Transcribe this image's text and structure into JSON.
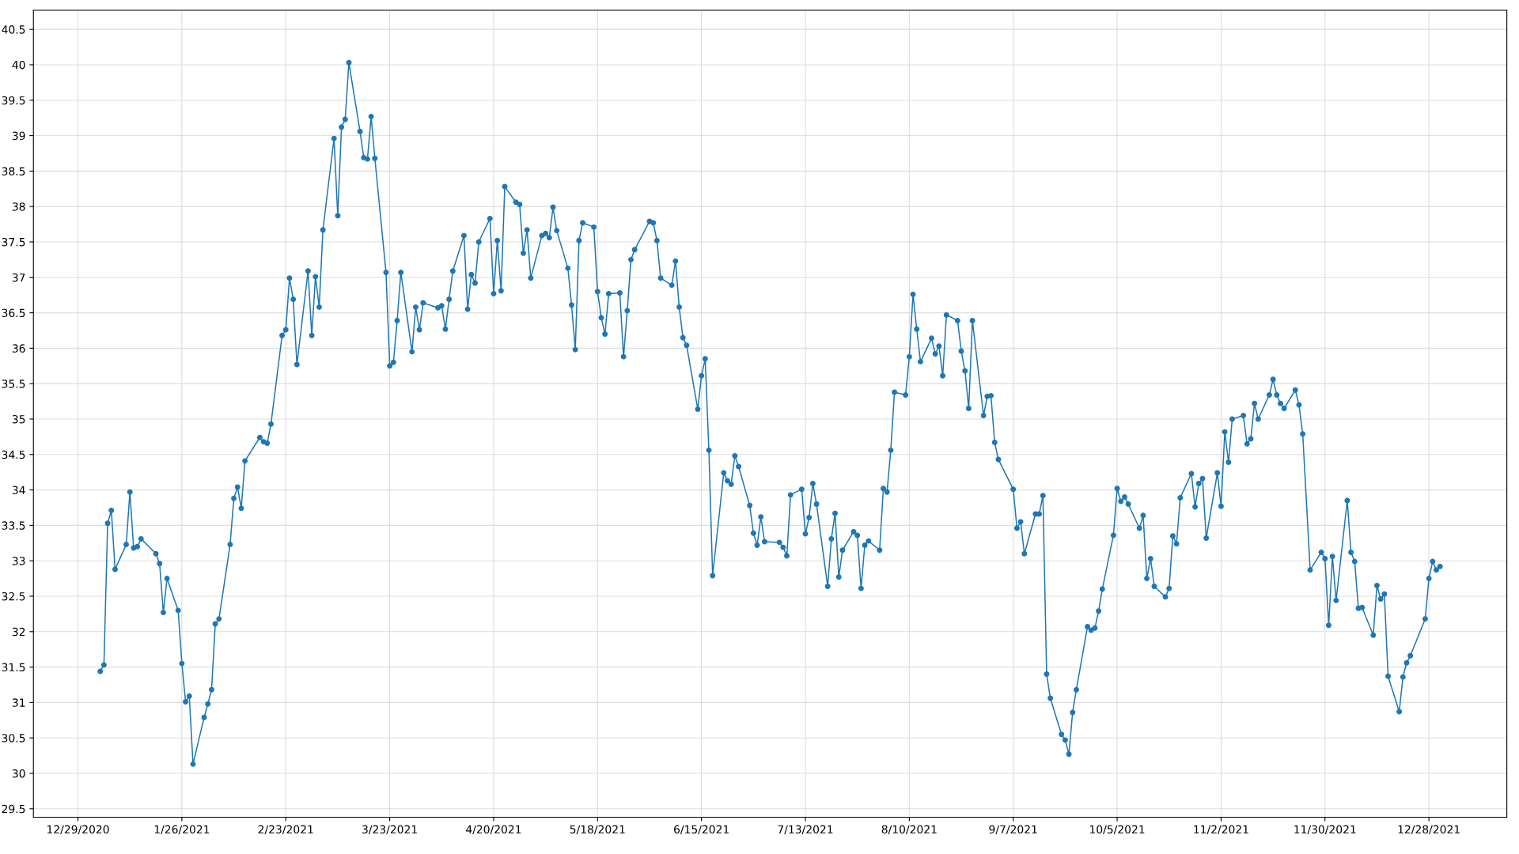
{
  "chart_data": {
    "type": "line",
    "x": [
      "2021-01-04",
      "2021-01-05",
      "2021-01-06",
      "2021-01-07",
      "2021-01-08",
      "2021-01-11",
      "2021-01-12",
      "2021-01-13",
      "2021-01-14",
      "2021-01-15",
      "2021-01-19",
      "2021-01-20",
      "2021-01-21",
      "2021-01-22",
      "2021-01-25",
      "2021-01-26",
      "2021-01-27",
      "2021-01-28",
      "2021-01-29",
      "2021-02-01",
      "2021-02-02",
      "2021-02-03",
      "2021-02-04",
      "2021-02-05",
      "2021-02-08",
      "2021-02-09",
      "2021-02-10",
      "2021-02-11",
      "2021-02-12",
      "2021-02-16",
      "2021-02-17",
      "2021-02-18",
      "2021-02-19",
      "2021-02-22",
      "2021-02-23",
      "2021-02-24",
      "2021-02-25",
      "2021-02-26",
      "2021-03-01",
      "2021-03-02",
      "2021-03-03",
      "2021-03-04",
      "2021-03-05",
      "2021-03-08",
      "2021-03-09",
      "2021-03-10",
      "2021-03-11",
      "2021-03-12",
      "2021-03-15",
      "2021-03-16",
      "2021-03-17",
      "2021-03-18",
      "2021-03-19",
      "2021-03-22",
      "2021-03-23",
      "2021-03-24",
      "2021-03-25",
      "2021-03-26",
      "2021-03-29",
      "2021-03-30",
      "2021-03-31",
      "2021-04-01",
      "2021-04-05",
      "2021-04-06",
      "2021-04-07",
      "2021-04-08",
      "2021-04-09",
      "2021-04-12",
      "2021-04-13",
      "2021-04-14",
      "2021-04-15",
      "2021-04-16",
      "2021-04-19",
      "2021-04-20",
      "2021-04-21",
      "2021-04-22",
      "2021-04-23",
      "2021-04-26",
      "2021-04-27",
      "2021-04-28",
      "2021-04-29",
      "2021-04-30",
      "2021-05-03",
      "2021-05-04",
      "2021-05-05",
      "2021-05-06",
      "2021-05-07",
      "2021-05-10",
      "2021-05-11",
      "2021-05-12",
      "2021-05-13",
      "2021-05-14",
      "2021-05-17",
      "2021-05-18",
      "2021-05-19",
      "2021-05-20",
      "2021-05-21",
      "2021-05-24",
      "2021-05-25",
      "2021-05-26",
      "2021-05-27",
      "2021-05-28",
      "2021-06-01",
      "2021-06-02",
      "2021-06-03",
      "2021-06-04",
      "2021-06-07",
      "2021-06-08",
      "2021-06-09",
      "2021-06-10",
      "2021-06-11",
      "2021-06-14",
      "2021-06-15",
      "2021-06-16",
      "2021-06-17",
      "2021-06-18",
      "2021-06-21",
      "2021-06-22",
      "2021-06-23",
      "2021-06-24",
      "2021-06-25",
      "2021-06-28",
      "2021-06-29",
      "2021-06-30",
      "2021-07-01",
      "2021-07-02",
      "2021-07-06",
      "2021-07-07",
      "2021-07-08",
      "2021-07-09",
      "2021-07-12",
      "2021-07-13",
      "2021-07-14",
      "2021-07-15",
      "2021-07-16",
      "2021-07-19",
      "2021-07-20",
      "2021-07-21",
      "2021-07-22",
      "2021-07-23",
      "2021-07-26",
      "2021-07-27",
      "2021-07-28",
      "2021-07-29",
      "2021-07-30",
      "2021-08-02",
      "2021-08-03",
      "2021-08-04",
      "2021-08-05",
      "2021-08-06",
      "2021-08-09",
      "2021-08-10",
      "2021-08-11",
      "2021-08-12",
      "2021-08-13",
      "2021-08-16",
      "2021-08-17",
      "2021-08-18",
      "2021-08-19",
      "2021-08-20",
      "2021-08-23",
      "2021-08-24",
      "2021-08-25",
      "2021-08-26",
      "2021-08-27",
      "2021-08-30",
      "2021-08-31",
      "2021-09-01",
      "2021-09-02",
      "2021-09-03",
      "2021-09-07",
      "2021-09-08",
      "2021-09-09",
      "2021-09-10",
      "2021-09-13",
      "2021-09-14",
      "2021-09-15",
      "2021-09-16",
      "2021-09-17",
      "2021-09-20",
      "2021-09-21",
      "2021-09-22",
      "2021-09-23",
      "2021-09-24",
      "2021-09-27",
      "2021-09-28",
      "2021-09-29",
      "2021-09-30",
      "2021-10-01",
      "2021-10-04",
      "2021-10-05",
      "2021-10-06",
      "2021-10-07",
      "2021-10-08",
      "2021-10-11",
      "2021-10-12",
      "2021-10-13",
      "2021-10-14",
      "2021-10-15",
      "2021-10-18",
      "2021-10-19",
      "2021-10-20",
      "2021-10-21",
      "2021-10-22",
      "2021-10-25",
      "2021-10-26",
      "2021-10-27",
      "2021-10-28",
      "2021-10-29",
      "2021-11-01",
      "2021-11-02",
      "2021-11-03",
      "2021-11-04",
      "2021-11-05",
      "2021-11-08",
      "2021-11-09",
      "2021-11-10",
      "2021-11-11",
      "2021-11-12",
      "2021-11-15",
      "2021-11-16",
      "2021-11-17",
      "2021-11-18",
      "2021-11-19",
      "2021-11-22",
      "2021-11-23",
      "2021-11-24",
      "2021-11-26",
      "2021-11-29",
      "2021-11-30",
      "2021-12-01",
      "2021-12-02",
      "2021-12-03",
      "2021-12-06",
      "2021-12-07",
      "2021-12-08",
      "2021-12-09",
      "2021-12-10",
      "2021-12-13",
      "2021-12-14",
      "2021-12-15",
      "2021-12-16",
      "2021-12-17",
      "2021-12-20",
      "2021-12-21",
      "2021-12-22",
      "2021-12-23",
      "2021-12-27",
      "2021-12-28",
      "2021-12-29",
      "2021-12-30",
      "2021-12-31"
    ],
    "series": [
      {
        "color": "#1f77b4",
        "values": [
          31.44,
          31.53,
          33.53,
          33.71,
          32.88,
          33.23,
          33.97,
          33.18,
          33.2,
          33.31,
          33.1,
          32.96,
          32.27,
          32.75,
          32.3,
          31.55,
          31.01,
          31.09,
          30.13,
          30.79,
          30.98,
          31.18,
          32.11,
          32.18,
          33.23,
          33.88,
          34.04,
          33.74,
          34.41,
          34.74,
          34.68,
          34.66,
          34.93,
          36.18,
          36.26,
          36.99,
          36.69,
          35.77,
          37.09,
          36.18,
          37.01,
          36.58,
          37.67,
          38.96,
          37.87,
          39.12,
          39.23,
          40.03,
          39.06,
          38.69,
          38.67,
          39.27,
          38.68,
          37.07,
          35.75,
          35.8,
          36.39,
          37.07,
          35.95,
          36.58,
          36.26,
          36.64,
          36.57,
          36.6,
          36.27,
          36.69,
          37.09,
          37.59,
          36.55,
          37.04,
          36.92,
          37.5,
          37.83,
          36.77,
          37.52,
          36.81,
          38.28,
          38.06,
          38.03,
          37.34,
          37.67,
          36.99,
          37.59,
          37.62,
          37.56,
          37.99,
          37.66,
          37.13,
          36.61,
          35.98,
          37.52,
          37.77,
          37.71,
          36.8,
          36.43,
          36.2,
          36.77,
          36.78,
          35.88,
          36.53,
          37.25,
          37.39,
          37.79,
          37.77,
          37.52,
          36.99,
          36.89,
          37.23,
          36.58,
          36.15,
          36.04,
          35.14,
          35.61,
          35.85,
          34.56,
          32.79,
          34.24,
          34.13,
          34.08,
          34.48,
          34.33,
          33.78,
          33.39,
          33.22,
          33.62,
          33.27,
          33.26,
          33.19,
          33.07,
          33.93,
          34.01,
          33.38,
          33.61,
          34.09,
          33.8,
          32.64,
          33.31,
          33.67,
          32.77,
          33.15,
          33.41,
          33.36,
          32.61,
          33.22,
          33.28,
          33.15,
          34.02,
          33.97,
          34.56,
          35.38,
          35.34,
          35.88,
          36.76,
          36.27,
          35.81,
          36.14,
          35.92,
          36.03,
          35.61,
          36.47,
          36.39,
          35.96,
          35.68,
          35.15,
          36.39,
          35.05,
          35.32,
          35.33,
          34.67,
          34.43,
          34.01,
          33.46,
          33.55,
          33.1,
          33.66,
          33.66,
          33.92,
          31.4,
          31.06,
          30.55,
          30.47,
          30.27,
          30.86,
          31.18,
          32.07,
          32.02,
          32.05,
          32.29,
          32.6,
          33.36,
          34.02,
          33.84,
          33.9,
          33.8,
          33.46,
          33.64,
          32.75,
          33.03,
          32.64,
          32.49,
          32.61,
          33.35,
          33.24,
          33.89,
          34.23,
          33.76,
          34.09,
          34.16,
          33.32,
          34.24,
          33.77,
          34.82,
          34.39,
          35.0,
          35.05,
          34.65,
          34.72,
          35.22,
          35.0,
          35.34,
          35.56,
          35.34,
          35.22,
          35.15,
          35.41,
          35.2,
          34.79,
          32.87,
          33.12,
          33.03,
          32.09,
          33.06,
          32.44,
          33.85,
          33.12,
          32.99,
          32.33,
          32.34,
          31.95,
          32.65,
          32.46,
          32.53,
          31.37,
          30.87,
          31.36,
          31.56,
          31.66,
          32.18,
          32.75,
          32.99,
          32.87,
          32.92
        ]
      }
    ],
    "xlim": [
      "2020-12-17",
      "2022-01-18"
    ],
    "xticks": [
      {
        "value": "2020-12-29",
        "label": "12/29/2020"
      },
      {
        "value": "2021-01-26",
        "label": "1/26/2021"
      },
      {
        "value": "2021-02-23",
        "label": "2/23/2021"
      },
      {
        "value": "2021-03-23",
        "label": "3/23/2021"
      },
      {
        "value": "2021-04-20",
        "label": "4/20/2021"
      },
      {
        "value": "2021-05-18",
        "label": "5/18/2021"
      },
      {
        "value": "2021-06-15",
        "label": "6/15/2021"
      },
      {
        "value": "2021-07-13",
        "label": "7/13/2021"
      },
      {
        "value": "2021-08-10",
        "label": "8/10/2021"
      },
      {
        "value": "2021-09-07",
        "label": "9/7/2021"
      },
      {
        "value": "2021-10-05",
        "label": "10/5/2021"
      },
      {
        "value": "2021-11-02",
        "label": "11/2/2021"
      },
      {
        "value": "2021-11-30",
        "label": "11/30/2021"
      },
      {
        "value": "2021-12-28",
        "label": "12/28/2021"
      }
    ],
    "ylim": [
      29.38,
      40.77
    ],
    "yticks": [
      29.5,
      30,
      30.5,
      31,
      31.5,
      32,
      32.5,
      33,
      33.5,
      34,
      34.5,
      35,
      35.5,
      36,
      36.5,
      37,
      37.5,
      38,
      38.5,
      39,
      39.5,
      40,
      40.5
    ],
    "grid": true,
    "marker": "circle",
    "line_style": "solid"
  }
}
